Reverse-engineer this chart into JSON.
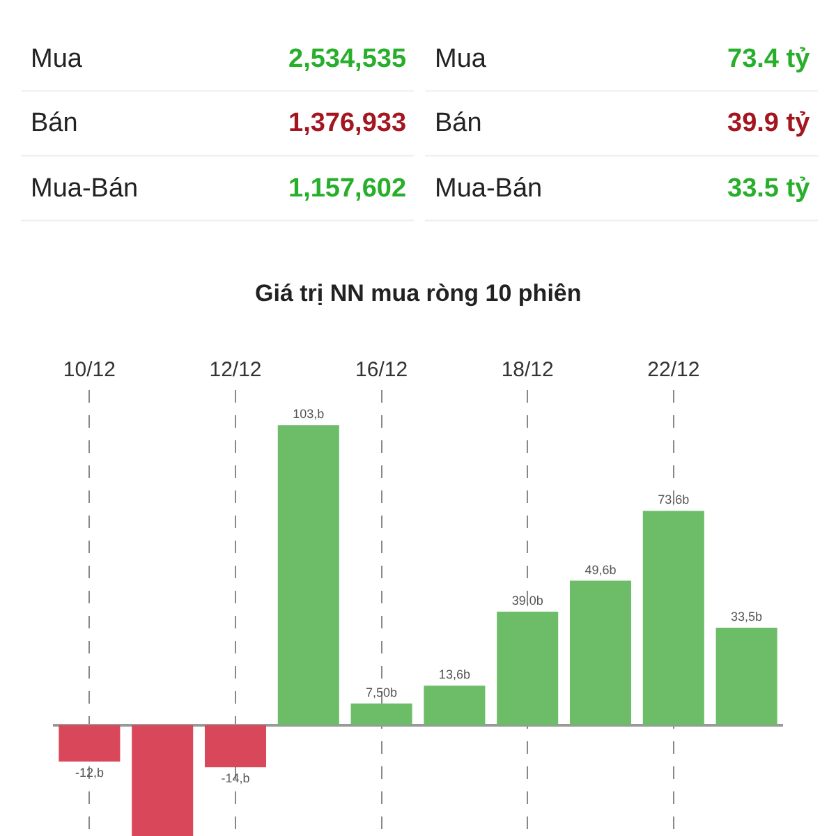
{
  "chart_data": [
    {
      "type": "other",
      "categories": [
        "Mua",
        "Bán",
        "Mua-Bán"
      ],
      "values": [
        2534535,
        1376933,
        1157602
      ],
      "value_labels": [
        "2,534,535",
        "1,376,933",
        "1,157,602"
      ],
      "colors": [
        "#27ae2a",
        "#a3161f",
        "#27ae2a"
      ]
    },
    {
      "type": "other",
      "categories": [
        "Mua",
        "Bán",
        "Mua-Bán"
      ],
      "values": [
        73.4,
        39.9,
        33.5
      ],
      "value_labels": [
        "73.4 tỷ",
        "39.9 tỷ",
        "33.5 tỷ"
      ],
      "colors": [
        "#27ae2a",
        "#a3161f",
        "#27ae2a"
      ]
    },
    {
      "type": "bar",
      "title": "Giá trị NN mua ròng 10 phiên",
      "categories": [
        "10/12",
        null,
        "12/12",
        null,
        "16/12",
        null,
        "18/12",
        null,
        "22/12",
        null
      ],
      "values": [
        -12.5,
        -38,
        -14.4,
        103,
        7.5,
        13.6,
        39.0,
        49.6,
        73.6,
        33.5
      ],
      "colors": [
        "#d9485a",
        "#d9485a",
        "#d9485a",
        "#6dbd68",
        "#6dbd68",
        "#6dbd68",
        "#6dbd68",
        "#6dbd68",
        "#6dbd68",
        "#6dbd68"
      ],
      "value_labels": [
        "-12,b",
        null,
        "-14,b",
        "103,b",
        "7,50b",
        "13,6b",
        "39,0b",
        "49,6b",
        "73,6b",
        "33,5b"
      ],
      "ylim": [
        -38,
        115
      ],
      "grid": "x",
      "tick_labels": "x"
    }
  ]
}
